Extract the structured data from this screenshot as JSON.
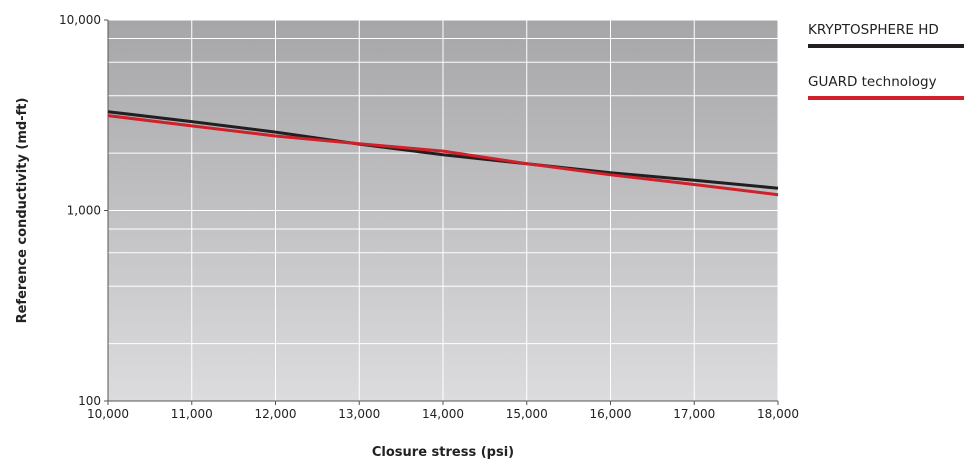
{
  "chart_data": {
    "type": "line",
    "title": "",
    "xlabel": "Closure stress (psi)",
    "ylabel": "Reference conductivity (md-ft)",
    "xlim": [
      10000,
      18000
    ],
    "ylim": [
      100,
      10000
    ],
    "yscale": "log",
    "grid": true,
    "legend_position": "right",
    "x_ticks": [
      10000,
      11000,
      12000,
      13000,
      14000,
      15000,
      16000,
      17000,
      18000
    ],
    "x_tick_labels": [
      "10,000",
      "11,000",
      "12,000",
      "13,000",
      "14,000",
      "15,000",
      "16,000",
      "17,000",
      "18,000"
    ],
    "y_ticks": [
      100,
      1000,
      10000
    ],
    "y_tick_labels": [
      "100",
      "1,000",
      "10,000"
    ],
    "background_gradient": [
      "#a6a6a8",
      "#dcdcde"
    ],
    "series": [
      {
        "name": "KRYPTOSPHERE HD",
        "color": "#231f20",
        "x": [
          10000,
          11000,
          12000,
          13000,
          14000,
          15000,
          16000,
          17000,
          18000
        ],
        "values": [
          3300,
          2930,
          2580,
          2230,
          1960,
          1760,
          1580,
          1440,
          1310
        ]
      },
      {
        "name": "GUARD technology",
        "color": "#d0202a",
        "x": [
          10000,
          11000,
          12000,
          13000,
          14000,
          15000,
          16000,
          17000,
          18000
        ],
        "values": [
          3150,
          2780,
          2460,
          2240,
          2050,
          1760,
          1540,
          1370,
          1210
        ]
      }
    ]
  }
}
